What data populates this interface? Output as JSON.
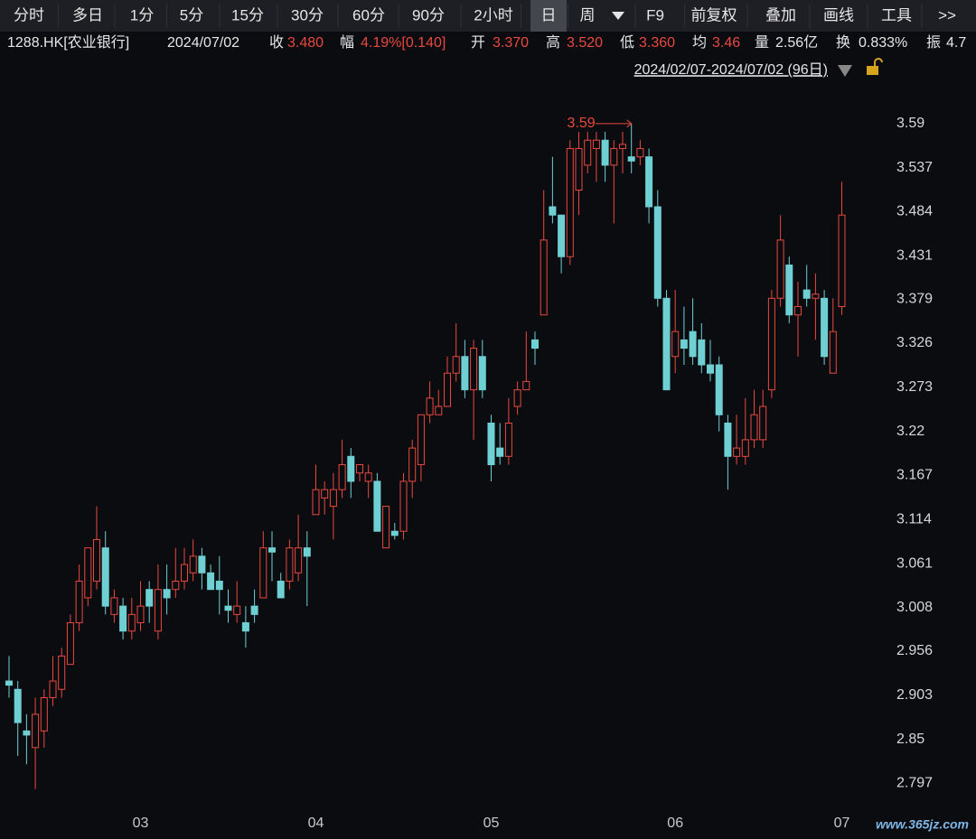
{
  "toolbar": {
    "tabs": [
      "分时",
      "多日",
      "1分",
      "5分",
      "15分",
      "30分",
      "60分",
      "90分",
      "2小时",
      "日",
      "周",
      "F9",
      "前复权",
      "叠加",
      "画线",
      "工具",
      ">>"
    ]
  },
  "header": {
    "security": "1288.HK[农业银行]",
    "date": "2024/07/02",
    "fields": [
      {
        "label": "收",
        "value": "3.480"
      },
      {
        "label": "幅",
        "value": "4.19%[0.140]"
      },
      {
        "label": "开",
        "value": "3.370"
      },
      {
        "label": "高",
        "value": "3.520"
      },
      {
        "label": "低",
        "value": "3.360"
      },
      {
        "label": "均",
        "value": "3.46"
      },
      {
        "label": "量",
        "value": "2.56亿"
      },
      {
        "label": "换",
        "value": "0.833%"
      },
      {
        "label": "振",
        "value": "4.7"
      }
    ],
    "range": "2024/02/07-2024/07/02 (96日)"
  },
  "chart_data": {
    "type": "candlestick",
    "categories": [
      null,
      null,
      null,
      null,
      null,
      null,
      null,
      null,
      null,
      null,
      null,
      null,
      null,
      null,
      null,
      "03",
      null,
      null,
      null,
      null,
      null,
      null,
      null,
      null,
      null,
      null,
      null,
      null,
      null,
      null,
      null,
      null,
      null,
      null,
      null,
      "04",
      null,
      null,
      null,
      null,
      null,
      null,
      null,
      null,
      null,
      null,
      null,
      null,
      null,
      null,
      null,
      null,
      null,
      null,
      null,
      "05",
      null,
      null,
      null,
      null,
      null,
      null,
      null,
      null,
      null,
      null,
      null,
      null,
      null,
      null,
      null,
      null,
      null,
      null,
      null,
      null,
      "06",
      null,
      null,
      null,
      null,
      null,
      null,
      null,
      null,
      null,
      null,
      null,
      null,
      null,
      null,
      null,
      null,
      null,
      null,
      "07"
    ],
    "open": [
      2.92,
      2.91,
      2.86,
      2.84,
      2.86,
      2.9,
      2.91,
      2.94,
      2.99,
      3.02,
      3.04,
      3.08,
      3.0,
      3.01,
      2.98,
      2.99,
      3.03,
      2.98,
      3.03,
      3.03,
      3.04,
      3.05,
      3.07,
      3.05,
      3.04,
      3.01,
      3.0,
      2.99,
      3.01,
      3.02,
      3.08,
      3.04,
      3.04,
      3.05,
      3.08,
      3.12,
      3.14,
      3.13,
      3.15,
      3.19,
      3.17,
      3.16,
      3.16,
      3.08,
      3.1,
      3.1,
      3.16,
      3.18,
      3.24,
      3.24,
      3.25,
      3.29,
      3.31,
      3.27,
      3.31,
      3.23,
      3.2,
      3.19,
      3.25,
      3.27,
      3.33,
      3.36,
      3.49,
      3.48,
      3.43,
      3.51,
      3.54,
      3.56,
      3.57,
      3.54,
      3.56,
      3.55,
      3.55,
      3.55,
      3.49,
      3.38,
      3.31,
      3.33,
      3.34,
      3.33,
      3.3,
      3.3,
      3.23,
      3.19,
      3.19,
      3.21,
      3.21,
      3.27,
      3.38,
      3.42,
      3.36,
      3.39,
      3.38,
      3.38,
      3.29,
      3.37
    ],
    "high": [
      2.95,
      2.92,
      2.88,
      2.9,
      2.91,
      2.95,
      2.96,
      3.0,
      3.06,
      3.08,
      3.13,
      3.1,
      3.03,
      3.02,
      3.02,
      3.04,
      3.04,
      3.06,
      3.06,
      3.08,
      3.08,
      3.09,
      3.08,
      3.06,
      3.07,
      3.03,
      3.04,
      3.01,
      3.03,
      3.1,
      3.1,
      3.05,
      3.09,
      3.12,
      3.1,
      3.18,
      3.16,
      3.17,
      3.21,
      3.2,
      3.18,
      3.18,
      3.17,
      3.13,
      3.11,
      3.17,
      3.21,
      3.24,
      3.28,
      3.27,
      3.31,
      3.35,
      3.33,
      3.33,
      3.33,
      3.24,
      3.23,
      3.26,
      3.28,
      3.34,
      3.34,
      3.51,
      3.55,
      3.48,
      3.57,
      3.58,
      3.58,
      3.58,
      3.58,
      3.57,
      3.58,
      3.59,
      3.57,
      3.56,
      3.51,
      3.39,
      3.39,
      3.37,
      3.38,
      3.35,
      3.33,
      3.31,
      3.24,
      3.24,
      3.26,
      3.27,
      3.27,
      3.39,
      3.48,
      3.43,
      3.4,
      3.42,
      3.41,
      3.39,
      3.38,
      3.52
    ],
    "low": [
      2.9,
      2.83,
      2.82,
      2.79,
      2.84,
      2.89,
      2.9,
      2.94,
      2.98,
      3.01,
      3.03,
      3.0,
      2.99,
      2.97,
      2.97,
      2.98,
      2.99,
      2.97,
      3.0,
      3.02,
      3.03,
      3.04,
      3.03,
      3.03,
      3.0,
      2.99,
      2.99,
      2.96,
      2.99,
      3.02,
      3.04,
      3.02,
      3.03,
      3.04,
      3.01,
      3.12,
      3.12,
      3.09,
      3.14,
      3.14,
      3.16,
      3.14,
      3.1,
      3.08,
      3.09,
      3.09,
      3.14,
      3.16,
      3.23,
      3.24,
      3.25,
      3.28,
      3.26,
      3.21,
      3.26,
      3.16,
      3.18,
      3.18,
      3.24,
      3.27,
      3.3,
      3.36,
      3.47,
      3.41,
      3.42,
      3.48,
      3.53,
      3.52,
      3.52,
      3.47,
      3.53,
      3.53,
      3.54,
      3.47,
      3.37,
      3.27,
      3.29,
      3.3,
      3.3,
      3.29,
      3.28,
      3.22,
      3.15,
      3.18,
      3.18,
      3.2,
      3.2,
      3.26,
      3.37,
      3.35,
      3.31,
      3.37,
      3.33,
      3.3,
      3.29,
      3.36
    ],
    "close": [
      2.915,
      2.87,
      2.855,
      2.88,
      2.9,
      2.92,
      2.95,
      2.99,
      3.04,
      3.08,
      3.09,
      3.01,
      3.02,
      2.98,
      3.0,
      3.01,
      3.01,
      3.03,
      3.02,
      3.04,
      3.06,
      3.07,
      3.05,
      3.03,
      3.03,
      3.005,
      3.01,
      2.98,
      3.0,
      3.08,
      3.075,
      3.02,
      3.08,
      3.08,
      3.07,
      3.15,
      3.15,
      3.15,
      3.18,
      3.16,
      3.18,
      3.17,
      3.1,
      3.13,
      3.095,
      3.16,
      3.2,
      3.24,
      3.26,
      3.25,
      3.29,
      3.31,
      3.27,
      3.32,
      3.27,
      3.18,
      3.19,
      3.23,
      3.27,
      3.28,
      3.32,
      3.45,
      3.48,
      3.43,
      3.56,
      3.56,
      3.57,
      3.57,
      3.54,
      3.56,
      3.565,
      3.545,
      3.56,
      3.49,
      3.38,
      3.27,
      3.34,
      3.32,
      3.31,
      3.3,
      3.29,
      3.24,
      3.19,
      3.2,
      3.21,
      3.24,
      3.25,
      3.38,
      3.45,
      3.36,
      3.37,
      3.38,
      3.385,
      3.31,
      3.34,
      3.48
    ],
    "up_color": "#e9483f",
    "down_color": "#6fd0d4",
    "max_label": 3.59,
    "ylim": [
      2.767,
      3.643
    ],
    "yticks": [
      3.59,
      3.537,
      3.484,
      3.431,
      3.379,
      3.326,
      3.273,
      3.22,
      3.167,
      3.114,
      3.061,
      3.008,
      2.956,
      2.903,
      2.85,
      2.797
    ],
    "grid": false
  },
  "watermark": "www.365jz.com"
}
